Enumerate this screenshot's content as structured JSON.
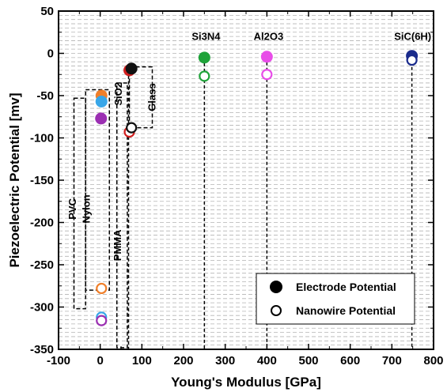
{
  "chart_data": {
    "type": "scatter",
    "title": "",
    "xlabel": "Young's Modulus [GPa]",
    "ylabel": "Piezoelectric Potential [mv]",
    "xlim": [
      -100,
      800
    ],
    "ylim": [
      -350,
      50
    ],
    "x_ticks": [
      -100,
      0,
      100,
      200,
      300,
      400,
      500,
      600,
      700,
      800
    ],
    "y_ticks": [
      50,
      0,
      -50,
      -100,
      -150,
      -200,
      -250,
      -300,
      -350
    ],
    "x_tick_labels": [
      "-100",
      "0",
      "100",
      "200",
      "300",
      "400",
      "500",
      "600",
      "700",
      "800"
    ],
    "y_tick_labels": [
      "50",
      "0",
      "-50",
      "-100",
      "-150",
      "-200",
      "-250",
      "-300",
      "-350"
    ],
    "grid": "horizontal dashed lines every 5 mv",
    "legend": {
      "placement": "bottom-right",
      "entries": [
        {
          "label": "Electrode Potential",
          "marker": "filled-circle"
        },
        {
          "label": "Nanowire Potential",
          "marker": "open-circle"
        }
      ]
    },
    "series": [
      {
        "name": "Electrode Potential",
        "marker": "filled",
        "points": [
          {
            "x": 3,
            "y": -50,
            "color": "#f07f2a"
          },
          {
            "x": 3,
            "y": -57,
            "color": "#38a6e8"
          },
          {
            "x": 2,
            "y": -77,
            "color": "#9b2fb2"
          },
          {
            "x": 70,
            "y": -20,
            "color": "#d11e1e"
          },
          {
            "x": 75,
            "y": -18,
            "color": "#111111"
          },
          {
            "x": 250,
            "y": -5,
            "color": "#1fa33a"
          },
          {
            "x": 400,
            "y": -4,
            "color": "#e84de8"
          },
          {
            "x": 748,
            "y": -3,
            "color": "#1a2b8c"
          }
        ]
      },
      {
        "name": "Nanowire Potential",
        "marker": "open",
        "points": [
          {
            "x": 3,
            "y": -278,
            "color": "#f07f2a"
          },
          {
            "x": 3,
            "y": -312,
            "color": "#38a6e8"
          },
          {
            "x": 3,
            "y": -316,
            "color": "#9b2fb2"
          },
          {
            "x": 70,
            "y": -93,
            "color": "#d11e1e"
          },
          {
            "x": 75,
            "y": -88,
            "color": "#111111"
          },
          {
            "x": 250,
            "y": -27,
            "color": "#1fa33a"
          },
          {
            "x": 400,
            "y": -25,
            "color": "#e84de8"
          },
          {
            "x": 748,
            "y": -8,
            "color": "#1a2b8c"
          }
        ]
      }
    ],
    "annotations": [
      {
        "text": "PVC",
        "anchor_x": -58,
        "anchor_y": -184,
        "rotate": -90
      },
      {
        "text": "Nylon",
        "anchor_x": -25,
        "anchor_y": -184,
        "rotate": -90
      },
      {
        "text": "PMMA",
        "anchor_x": 50,
        "anchor_y": -227,
        "rotate": -90
      },
      {
        "text": "SiO2",
        "anchor_x": 52,
        "anchor_y": -48,
        "rotate": -90
      },
      {
        "text": "Glass",
        "anchor_x": 133,
        "anchor_y": -52,
        "rotate": -90
      },
      {
        "text": "Si3N4",
        "anchor_x": 254,
        "anchor_y": 16,
        "rotate": 0
      },
      {
        "text": "Al2O3",
        "anchor_x": 404,
        "anchor_y": 16,
        "rotate": 0
      },
      {
        "text": "SiC(6H)",
        "anchor_x": 750,
        "anchor_y": 16,
        "rotate": 0
      }
    ],
    "group_outlines": [
      {
        "name": "PVC",
        "points": [
          [
            -63,
            -53
          ],
          [
            -35,
            -53
          ],
          [
            -35,
            -302
          ],
          [
            -63,
            -302
          ]
        ]
      },
      {
        "name": "Nylon",
        "points": [
          [
            -35,
            -43
          ],
          [
            22,
            -43
          ],
          [
            22,
            -280
          ],
          [
            -35,
            -280
          ]
        ]
      },
      {
        "name": "PMMA",
        "points": [
          [
            40,
            -35
          ],
          [
            65,
            -35
          ],
          [
            65,
            -348
          ],
          [
            40,
            -348
          ]
        ]
      },
      {
        "name": "Glass",
        "points": [
          [
            70,
            -16
          ],
          [
            125,
            -16
          ],
          [
            125,
            -88
          ],
          [
            70,
            -88
          ]
        ]
      }
    ],
    "vertical_guides": [
      {
        "x": 250,
        "from_y": -5,
        "to_y": -350
      },
      {
        "x": 400,
        "from_y": -4,
        "to_y": -350
      },
      {
        "x": 748,
        "from_y": -3,
        "to_y": -350
      },
      {
        "x": 68,
        "from_y": -20,
        "to_y": -350
      }
    ]
  }
}
